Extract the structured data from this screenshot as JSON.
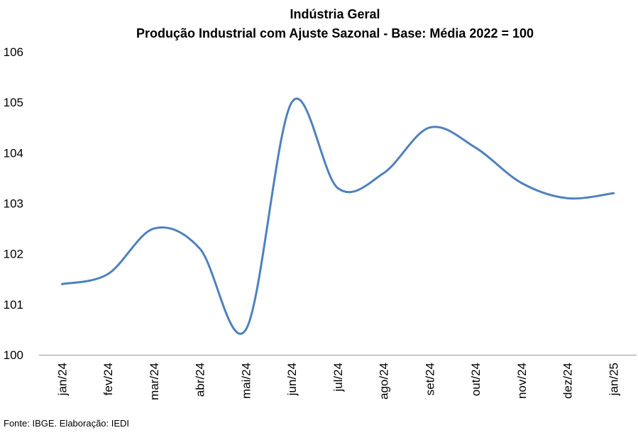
{
  "chart_data": {
    "type": "line",
    "title": "Indústria Geral",
    "subtitle": "Produção Industrial com Ajuste Sazonal - Base: Média 2022 = 100",
    "source_note": "Fonte: IBGE. Elaboração: IEDI",
    "series_name": "Indústria Geral",
    "categories": [
      "jan/24",
      "fev/24",
      "mar/24",
      "abr/24",
      "mai/24",
      "jun/24",
      "jul/24",
      "ago/24",
      "set/24",
      "out/24",
      "nov/24",
      "dez/24",
      "jan/25"
    ],
    "values": [
      101.4,
      101.6,
      102.5,
      102.1,
      100.5,
      105.0,
      103.3,
      103.6,
      104.5,
      104.1,
      103.4,
      103.1,
      103.2
    ],
    "xlabel": "",
    "ylabel": "",
    "ylim": [
      100,
      106
    ],
    "yticks": [
      106,
      105,
      104,
      103,
      102,
      101,
      100
    ],
    "x_tick_rotation": 90,
    "grid": false,
    "legend_position": "none",
    "smooth": true,
    "line_color": "#4F81BD",
    "axis_line_color": "#A6A6A6",
    "text_color": "#000000"
  }
}
